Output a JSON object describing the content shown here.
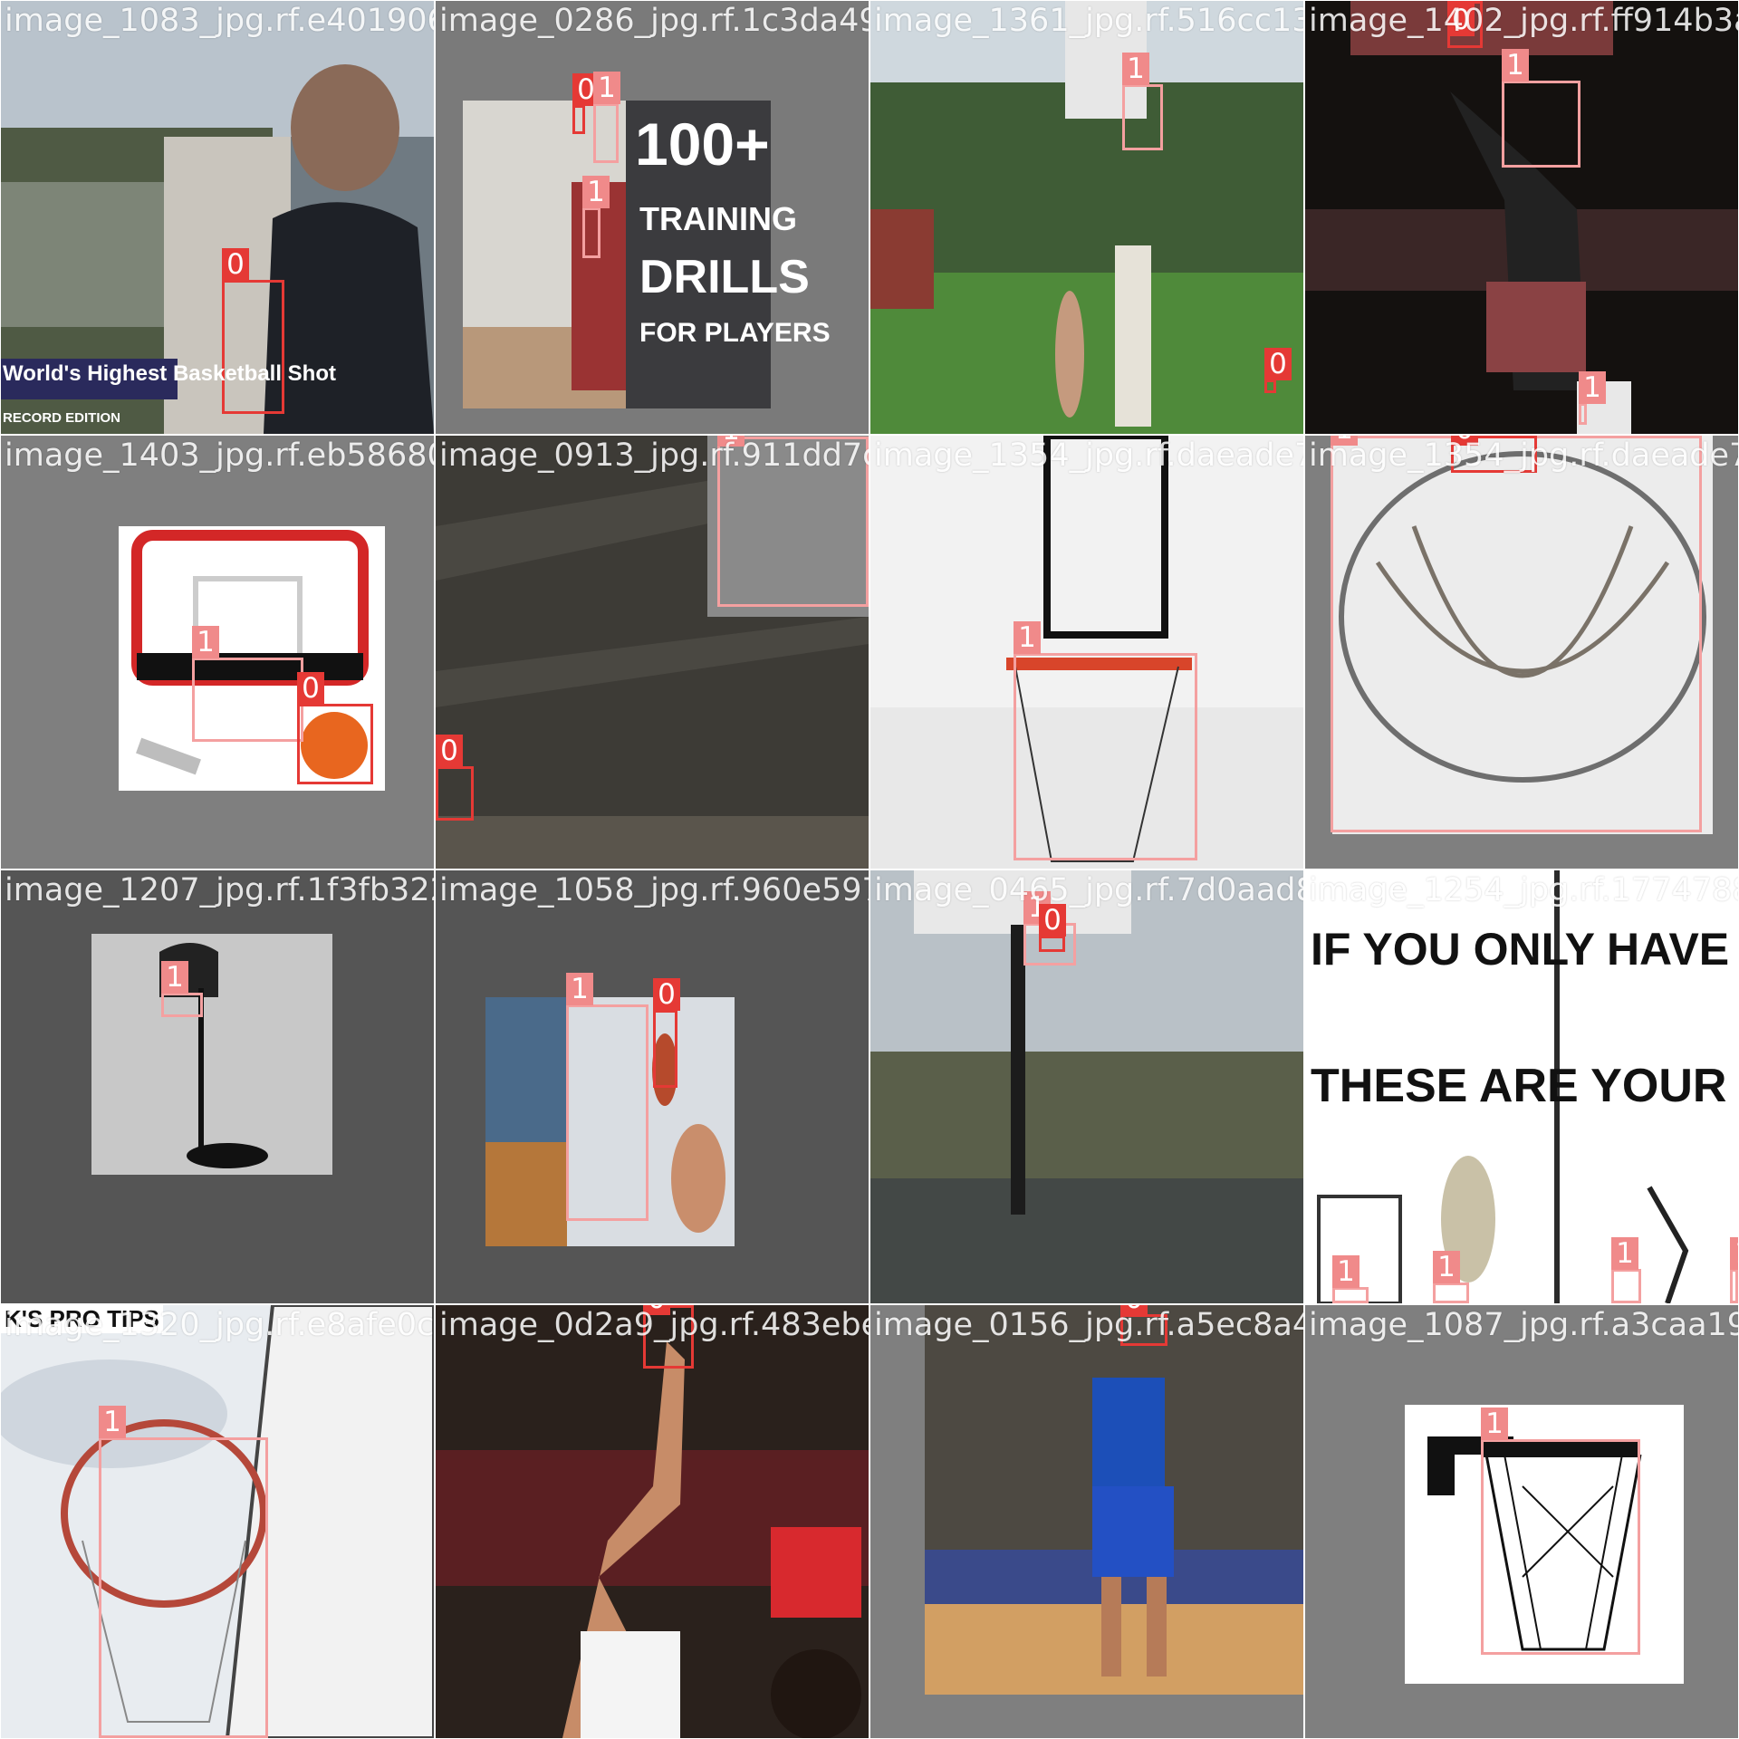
{
  "mosaic": {
    "tiles": [
      {
        "filename": "image_1083_jpg.rf.e4019065118d2076295bcc9",
        "caption": "World's Highest Basketball Shot",
        "subcaption": "RECORD EDITION"
      },
      {
        "filename": "image_0286_jpg.rf.1c3da4907afc3a1383af76",
        "poster": [
          "100+",
          "TRAINING",
          "DRILLS",
          "FOR PLAYERS"
        ]
      },
      {
        "filename": "image_1361_jpg.rf.516cc13eeaae7e2602f5948"
      },
      {
        "filename": "image_1402_jpg.rf.ff914b3a"
      },
      {
        "filename": "image_1403_jpg.rf.eb58680971339412f673e08"
      },
      {
        "filename": "image_0913_jpg.rf.911dd7c6"
      },
      {
        "filename": "image_1354_jpg.rf.daeade7"
      },
      {
        "filename": "image_1354_jpg.rf.daeade7"
      },
      {
        "filename": "image_1207_jpg.rf.1f3fb3224f1709195658"
      },
      {
        "filename": "image_1058_jpg.rf.960e597a1a3d8"
      },
      {
        "filename": "image_0465_jpg.rf.7d0aad8e43e77261295454"
      },
      {
        "filename": "image_1254_jpg.rf.1774788",
        "poster": [
          "IF YOU ONLY HAVE A P",
          "THESE ARE YOUR OPTI"
        ]
      },
      {
        "filename": "image_1320_jpg.rf.e8afe0c",
        "corner_text": "K'S PRO TIPS"
      },
      {
        "filename": "image_0d2a9_jpg.rf.483ebeb9243886f59"
      },
      {
        "filename": "image_0156_jpg.rf.a5ec8a4e61981087b40"
      },
      {
        "filename": "image_1087_jpg.rf.a3caa19"
      }
    ]
  },
  "colors": {
    "class0": "#e53935",
    "class1": "#f4a0a0",
    "tile_bg": "#7f7f7f"
  },
  "labels": {
    "class0": "0",
    "class1": "1"
  }
}
